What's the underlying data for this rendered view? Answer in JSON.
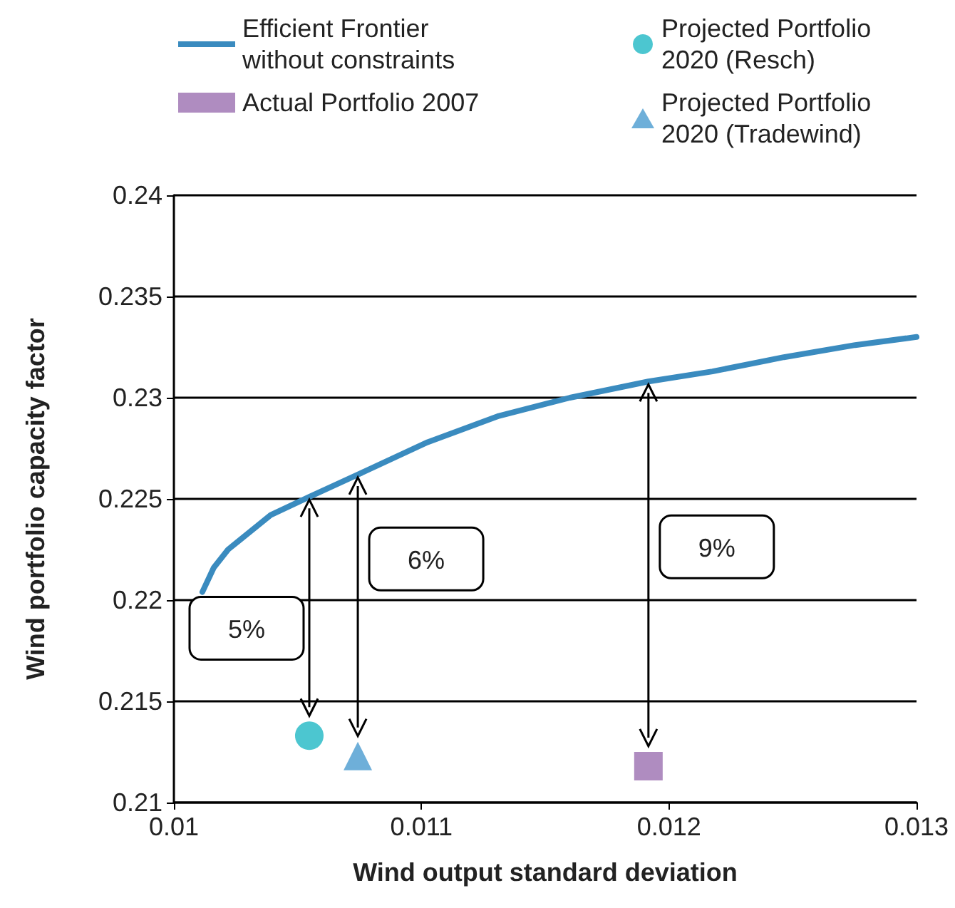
{
  "chart_data": {
    "type": "line",
    "xlabel": "Wind output standard deviation",
    "ylabel": "Wind portfolio capacity factor",
    "xlim": [
      0.01,
      0.013
    ],
    "xticks": [
      0.01,
      0.011,
      0.012,
      0.013
    ],
    "ylim": [
      0.21,
      0.24
    ],
    "yticks": [
      0.21,
      0.215,
      0.22,
      0.225,
      0.23,
      0.235,
      0.24
    ],
    "grid": "y",
    "legend": "top",
    "series": [
      {
        "name": "Efficient Frontier without constraints",
        "marker": "none",
        "color": "#3a8bbf",
        "x": [
          0.010115,
          0.010161,
          0.010219,
          0.010391,
          0.010547,
          0.010743,
          0.011025,
          0.011313,
          0.0116,
          0.011917,
          0.012176,
          0.012464,
          0.012752,
          0.013
        ],
        "values": [
          0.2204,
          0.2216,
          0.2225,
          0.2242,
          0.2251,
          0.2262,
          0.2278,
          0.2291,
          0.23,
          0.2308,
          0.2313,
          0.232,
          0.2326,
          0.233
        ]
      },
      {
        "name": "Projected Portfolio 2020 (Resch)",
        "type": "scatter",
        "marker": "circle",
        "color": "#1fb8c4",
        "x": [
          0.010547
        ],
        "values": [
          0.2133
        ]
      },
      {
        "name": "Actual Portfolio 2007",
        "type": "scatter",
        "marker": "square",
        "color": "#9b6fb0",
        "x": [
          0.011917
        ],
        "values": [
          0.2118
        ]
      },
      {
        "name": "Projected Portfolio 2020 (Tradewind)",
        "type": "scatter",
        "marker": "triangle",
        "color": "#4a9bd0",
        "x": [
          0.010743
        ],
        "values": [
          0.2123
        ]
      }
    ],
    "annotations": [
      "5%",
      "6%",
      "9%"
    ]
  }
}
